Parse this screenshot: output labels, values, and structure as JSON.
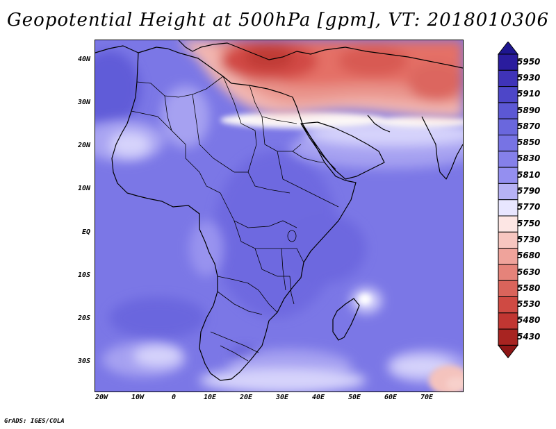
{
  "title": "Geopotential Height at 500hPa [gpm], VT: 2018010306",
  "credit": "GrADS: IGES/COLA",
  "lat_labels": [
    "40N",
    "30N",
    "20N",
    "10N",
    "EQ",
    "10S",
    "20S",
    "30S"
  ],
  "lon_labels": [
    "20W",
    "10W",
    "0",
    "10E",
    "20E",
    "30E",
    "40E",
    "50E",
    "60E",
    "70E"
  ],
  "colorbar": {
    "levels": [
      "5950",
      "5930",
      "5910",
      "5890",
      "5870",
      "5850",
      "5830",
      "5810",
      "5790",
      "5770",
      "5750",
      "5730",
      "5680",
      "5630",
      "5580",
      "5530",
      "5480",
      "5430"
    ],
    "colors": [
      "#2a1c9e",
      "#3f33b8",
      "#4d46c8",
      "#5c58d4",
      "#6a67dd",
      "#7773e4",
      "#8580ea",
      "#948ff0",
      "#b7b2f5",
      "#e8e6ff",
      "#fde6e4",
      "#f7c6c0",
      "#efa39b",
      "#e5837a",
      "#da645b",
      "#cf4a43",
      "#c13632",
      "#a82421"
    ],
    "over_color": "#1e1690",
    "under_color": "#8e1616"
  },
  "map": {
    "extent": {
      "lon": [
        -22,
        80
      ],
      "lat": [
        -37,
        44
      ]
    },
    "colors": {
      "mid_blue": "#7b77e6",
      "deep_blue": "#615cd8",
      "light_blue": "#a6a1f1",
      "pale_blue": "#d6d3fb",
      "white": "#fbf7f7",
      "pale_red": "#f2b6b0",
      "red": "#e46f66",
      "dark_red": "#c83e38"
    }
  }
}
